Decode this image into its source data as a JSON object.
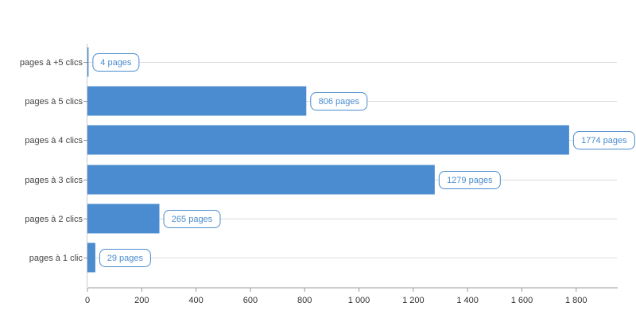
{
  "chart_data": {
    "type": "bar",
    "orientation": "horizontal",
    "title": "",
    "xlabel": "",
    "ylabel": "",
    "categories": [
      "pages à +5 clics",
      "pages à 5 clics",
      "pages à 4 clics",
      "pages à 3 clics",
      "pages à 2 clics",
      "pages à 1 clic"
    ],
    "values": [
      4,
      806,
      1774,
      1279,
      265,
      29
    ],
    "data_labels": [
      "4 pages",
      "806 pages",
      "1774 pages",
      "1279 pages",
      "265 pages",
      "29 pages"
    ],
    "xlim": [
      0,
      1950
    ],
    "x_ticks": [
      0,
      200,
      400,
      600,
      800,
      1000,
      1200,
      1400,
      1600,
      1800
    ],
    "x_tick_labels": [
      "0",
      "200",
      "400",
      "600",
      "800",
      "1 000",
      "1 200",
      "1 400",
      "1 600",
      "1 800"
    ],
    "grid": true,
    "legend": "none",
    "colors": {
      "bar": "#4a8ccf",
      "label_border": "#4a8ccf",
      "label_text": "#4a8ccf",
      "grid": "#dddddd",
      "axis": "#cccccc"
    }
  }
}
